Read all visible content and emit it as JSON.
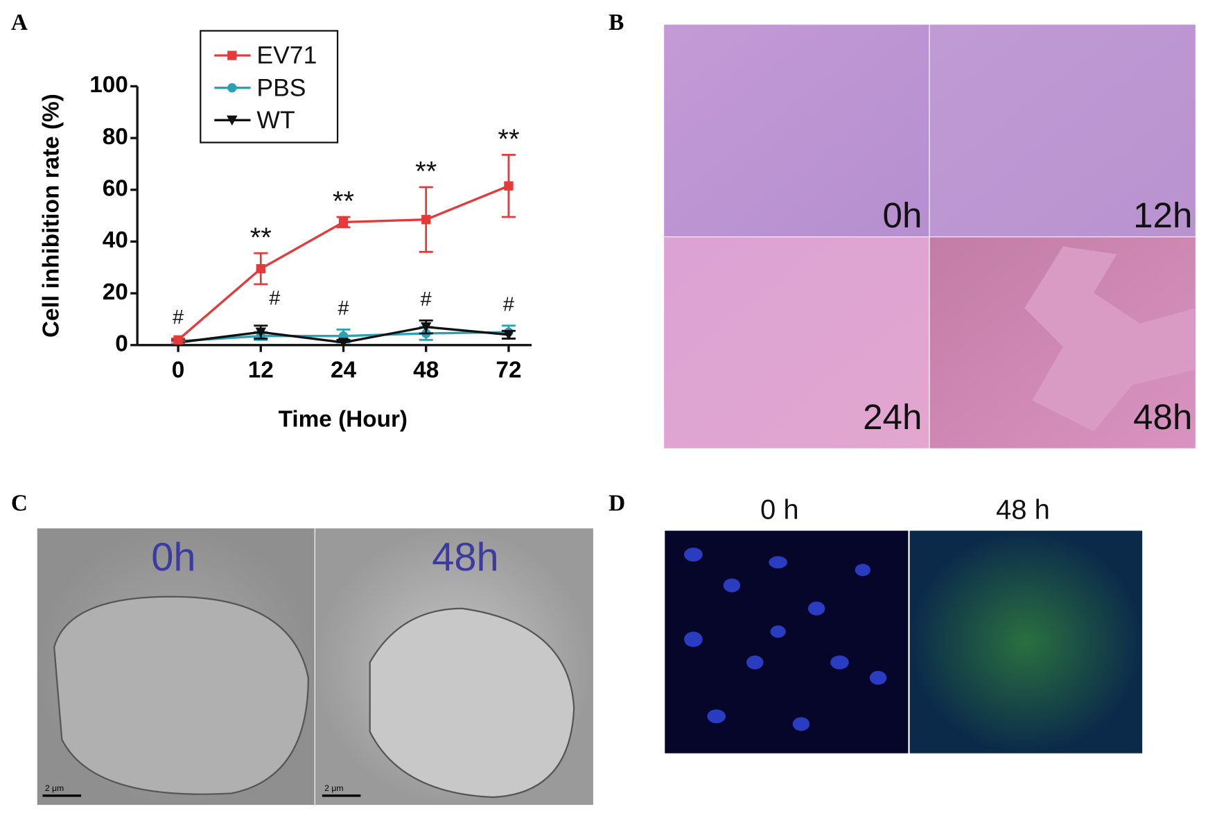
{
  "chart_data": {
    "type": "line",
    "x_label": "Time (Hour)",
    "y_label": "Cell inhibition rate (%)",
    "categories": [
      "0",
      "12",
      "24",
      "48",
      "72"
    ],
    "series": [
      {
        "name": "EV71",
        "color": "#e53a3c",
        "marker": "square",
        "values": [
          2,
          29.5,
          47.5,
          48.5,
          61.5
        ],
        "errors": [
          0.5,
          6,
          2,
          12.5,
          12
        ],
        "annotations": [
          null,
          "**",
          "**",
          "**",
          "**"
        ]
      },
      {
        "name": "PBS",
        "color": "#2aa1b5",
        "marker": "circle",
        "values": [
          1.5,
          3.5,
          3.5,
          4.5,
          5
        ],
        "errors": [
          1,
          1.5,
          2.5,
          2.5,
          2.5
        ]
      },
      {
        "name": "WT",
        "color": "#111111",
        "marker": "triangle-down",
        "values": [
          1,
          5,
          1,
          7,
          4
        ],
        "errors": [
          1,
          2.5,
          1,
          2.5,
          1.5
        ],
        "annotations": [
          "#",
          "#",
          "#",
          "#",
          "#"
        ]
      }
    ],
    "ylim": [
      0,
      100
    ],
    "yticks": [
      0,
      20,
      40,
      60,
      80,
      100
    ],
    "legend": "upper-left"
  },
  "panel_labels": [
    "A",
    "B",
    "C",
    "D"
  ],
  "panel_b": {
    "labels": [
      "0h",
      "12h",
      "24h",
      "48h"
    ]
  },
  "panel_c": {
    "labels": [
      "0h",
      "48h"
    ],
    "scale_bars": [
      "2 μm",
      "2 μm"
    ]
  },
  "panel_d": {
    "labels": [
      "0 h",
      "48 h"
    ]
  }
}
